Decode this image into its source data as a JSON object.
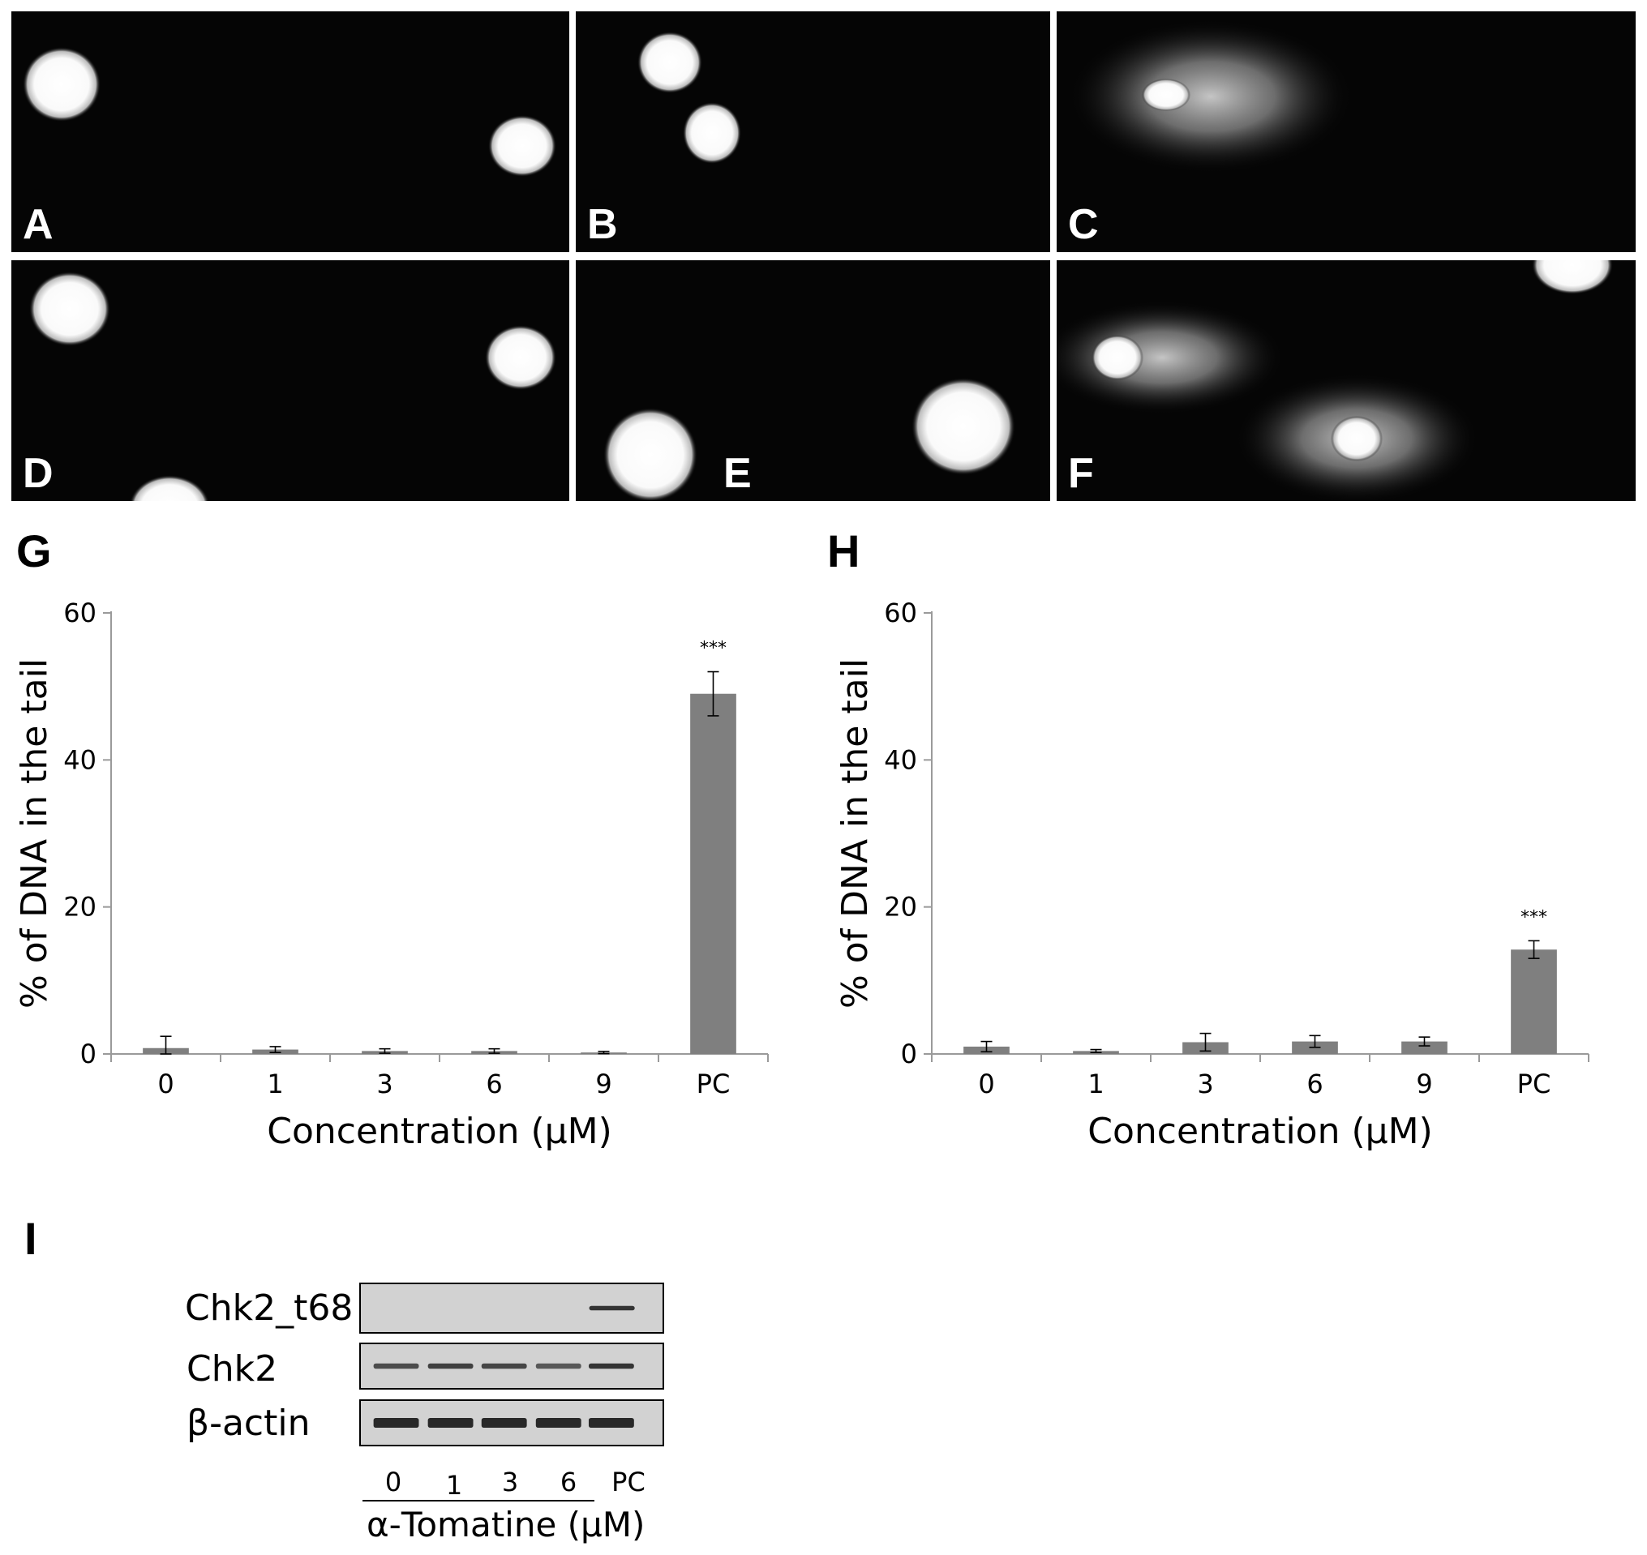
{
  "micrographs": [
    {
      "letter": "A"
    },
    {
      "letter": "B"
    },
    {
      "letter": "C"
    },
    {
      "letter": "D"
    },
    {
      "letter": "E"
    },
    {
      "letter": "F"
    }
  ],
  "chart_data": [
    {
      "panel": "G",
      "type": "bar",
      "categories": [
        "0",
        "1",
        "3",
        "6",
        "9",
        "PC"
      ],
      "values": [
        0.8,
        0.6,
        0.4,
        0.4,
        0.2,
        49
      ],
      "errors": [
        1.6,
        0.4,
        0.3,
        0.3,
        0.15,
        3.0
      ],
      "annotations": [
        "",
        "",
        "",
        "",
        "",
        "***"
      ],
      "xlabel": "Concentration (μM)",
      "ylabel": "% of DNA in the tail",
      "ylim": [
        0,
        60
      ],
      "yticks": [
        0,
        20,
        40,
        60
      ],
      "bar_color": "#7f7f7f",
      "grid": false
    },
    {
      "panel": "H",
      "type": "bar",
      "categories": [
        "0",
        "1",
        "3",
        "6",
        "9",
        "PC"
      ],
      "values": [
        1.0,
        0.4,
        1.6,
        1.7,
        1.7,
        14.2
      ],
      "errors": [
        0.7,
        0.2,
        1.2,
        0.8,
        0.6,
        1.2
      ],
      "annotations": [
        "",
        "",
        "",
        "",
        "",
        "***"
      ],
      "xlabel": "Concentration (μM)",
      "ylabel": "% of DNA in the tail",
      "ylim": [
        0,
        60
      ],
      "yticks": [
        0,
        20,
        40,
        60
      ],
      "bar_color": "#7f7f7f",
      "grid": false
    }
  ],
  "western_blot": {
    "panel": "I",
    "rows": [
      {
        "label": "Chk2_t68",
        "band_intensity": [
          0,
          0,
          0,
          0,
          0.9
        ]
      },
      {
        "label": "Chk2",
        "band_intensity": [
          0.7,
          0.8,
          0.75,
          0.6,
          0.9
        ]
      },
      {
        "label": "β-actin",
        "band_intensity": [
          1,
          1,
          1,
          1,
          1
        ]
      }
    ],
    "lanes": [
      "0",
      "1",
      "3",
      "6",
      "PC"
    ],
    "axis_title": "α-Tomatine (μM)"
  }
}
